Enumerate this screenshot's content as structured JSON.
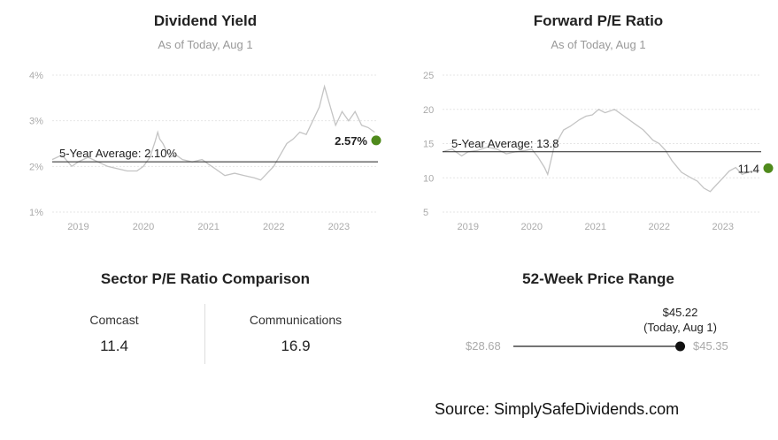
{
  "chart_data": [
    {
      "type": "line",
      "title": "Dividend Yield",
      "subtitle": "As of Today, Aug 1",
      "xlim": [
        2018.6,
        2023.6
      ],
      "ylim": [
        1,
        4
      ],
      "yticks": [
        "1%",
        "2%",
        "3%",
        "4%"
      ],
      "ytick_values": [
        1,
        2,
        3,
        4
      ],
      "xticks": [
        "2019",
        "2020",
        "2021",
        "2022",
        "2023"
      ],
      "xtick_values": [
        2019,
        2020,
        2021,
        2022,
        2023
      ],
      "average": 2.1,
      "average_label": "5-Year Average: 2.10%",
      "current": 2.57,
      "current_label": "2.57%",
      "current_color": "#4f8a1c",
      "series": [
        {
          "x": [
            2018.6,
            2018.75,
            2018.9,
            2019.0,
            2019.15,
            2019.3,
            2019.45,
            2019.6,
            2019.75,
            2019.9,
            2020.0,
            2020.1,
            2020.18,
            2020.22,
            2020.25,
            2020.3,
            2020.4,
            2020.5,
            2020.6,
            2020.75,
            2020.9,
            2021.0,
            2021.1,
            2021.25,
            2021.4,
            2021.55,
            2021.7,
            2021.8,
            2021.9,
            2022.0,
            2022.1,
            2022.2,
            2022.3,
            2022.4,
            2022.5,
            2022.6,
            2022.7,
            2022.78,
            2022.85,
            2022.95,
            2023.05,
            2023.15,
            2023.25,
            2023.35,
            2023.45,
            2023.55
          ],
          "y": [
            2.15,
            2.25,
            2.0,
            2.1,
            2.2,
            2.1,
            2.0,
            1.95,
            1.9,
            1.9,
            2.0,
            2.2,
            2.55,
            2.75,
            2.6,
            2.5,
            2.2,
            2.25,
            2.15,
            2.1,
            2.15,
            2.05,
            1.95,
            1.8,
            1.85,
            1.8,
            1.75,
            1.7,
            1.85,
            2.0,
            2.25,
            2.5,
            2.6,
            2.75,
            2.7,
            3.0,
            3.3,
            3.75,
            3.4,
            2.9,
            3.2,
            3.0,
            3.2,
            2.9,
            2.85,
            2.75
          ]
        }
      ]
    },
    {
      "type": "line",
      "title": "Forward P/E Ratio",
      "subtitle": "As of Today, Aug 1",
      "xlim": [
        2018.6,
        2023.6
      ],
      "ylim": [
        5,
        25
      ],
      "yticks": [
        "5",
        "10",
        "15",
        "20",
        "25"
      ],
      "ytick_values": [
        5,
        10,
        15,
        20,
        25
      ],
      "xticks": [
        "2019",
        "2020",
        "2021",
        "2022",
        "2023"
      ],
      "xtick_values": [
        2019,
        2020,
        2021,
        2022,
        2023
      ],
      "average": 13.8,
      "average_label": "5-Year Average: 13.8",
      "current": 11.4,
      "current_label": "11.4",
      "current_color": "#4f8a1c",
      "series": [
        {
          "x": [
            2018.6,
            2018.75,
            2018.9,
            2019.0,
            2019.15,
            2019.3,
            2019.45,
            2019.6,
            2019.75,
            2019.9,
            2020.0,
            2020.1,
            2020.2,
            2020.25,
            2020.35,
            2020.5,
            2020.6,
            2020.75,
            2020.85,
            2020.95,
            2021.05,
            2021.15,
            2021.3,
            2021.45,
            2021.6,
            2021.75,
            2021.9,
            2022.0,
            2022.1,
            2022.2,
            2022.35,
            2022.5,
            2022.6,
            2022.7,
            2022.8,
            2022.9,
            2023.0,
            2023.1,
            2023.2,
            2023.3,
            2023.45,
            2023.55
          ],
          "y": [
            13.8,
            14.2,
            13.2,
            13.8,
            14.0,
            14.5,
            14.2,
            13.5,
            13.8,
            14.0,
            14.2,
            13.0,
            11.5,
            10.5,
            14.5,
            17.0,
            17.5,
            18.5,
            19.0,
            19.2,
            20.0,
            19.5,
            20.0,
            19.0,
            18.0,
            17.0,
            15.5,
            15.0,
            14.0,
            12.5,
            10.8,
            10.0,
            9.5,
            8.5,
            8.0,
            9.0,
            10.0,
            11.0,
            11.5,
            10.5,
            11.0,
            10.8
          ]
        }
      ]
    }
  ],
  "sector": {
    "title": "Sector P/E Ratio Comparison",
    "left_label": "Comcast",
    "left_value": "11.4",
    "right_label": "Communications",
    "right_value": "16.9"
  },
  "range52": {
    "title": "52-Week Price Range",
    "low": "$28.68",
    "high": "$45.35",
    "low_value": 28.68,
    "high_value": 45.35,
    "current_value": 45.22,
    "current_price": "$45.22",
    "current_note": "(Today, Aug 1)"
  },
  "source": "Source: SimplySafeDividends.com"
}
